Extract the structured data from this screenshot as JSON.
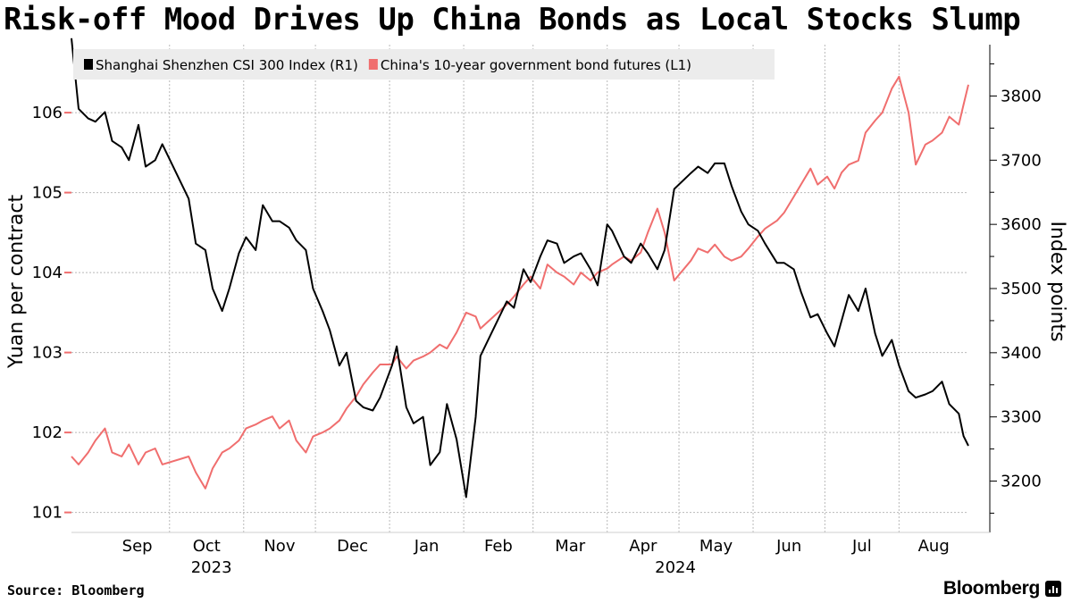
{
  "title": "Risk-off Mood Drives Up China Bonds as Local Stocks Slump",
  "footer": {
    "source": "Source: Bloomberg",
    "brand": "Bloomberg",
    "brand_icon": "bloomberg-terminal-icon"
  },
  "chart_data": {
    "type": "line",
    "title": "Risk-off Mood Drives Up China Bonds as Local Stocks Slump",
    "legend_position": "top-left",
    "x_start": "2023-08-21",
    "x_end": "2024-08-30",
    "x_months": [
      {
        "label": "Sep",
        "date": "2023-09-01"
      },
      {
        "label": "Oct",
        "date": "2023-10-01"
      },
      {
        "label": "Nov",
        "date": "2023-11-01"
      },
      {
        "label": "Dec",
        "date": "2023-12-01"
      },
      {
        "label": "Jan",
        "date": "2024-01-01"
      },
      {
        "label": "Feb",
        "date": "2024-02-01"
      },
      {
        "label": "Mar",
        "date": "2024-03-01"
      },
      {
        "label": "Apr",
        "date": "2024-04-01"
      },
      {
        "label": "May",
        "date": "2024-05-01"
      },
      {
        "label": "Jun",
        "date": "2024-06-01"
      },
      {
        "label": "Jul",
        "date": "2024-07-01"
      },
      {
        "label": "Aug",
        "date": "2024-08-01"
      }
    ],
    "x_years": [
      {
        "label": "2023",
        "date": "2023-10-20"
      },
      {
        "label": "2024",
        "date": "2024-05-01"
      }
    ],
    "y_left": {
      "label": "Yuan per contract",
      "ticks": [
        101,
        102,
        103,
        104,
        105,
        106
      ],
      "min": 100.75,
      "max": 106.85
    },
    "y_right": {
      "label": "Index points",
      "ticks": [
        3200,
        3300,
        3400,
        3500,
        3600,
        3700,
        3800
      ],
      "min": 3120,
      "max": 3880
    },
    "series": [
      {
        "name": "Shanghai Shenzhen CSI 300 Index (R1)",
        "axis": "right",
        "color": "#000000",
        "points": [
          [
            "2023-08-21",
            3890
          ],
          [
            "2023-08-24",
            3780
          ],
          [
            "2023-08-28",
            3765
          ],
          [
            "2023-08-31",
            3760
          ],
          [
            "2023-09-04",
            3775
          ],
          [
            "2023-09-07",
            3730
          ],
          [
            "2023-09-11",
            3720
          ],
          [
            "2023-09-14",
            3700
          ],
          [
            "2023-09-18",
            3755
          ],
          [
            "2023-09-21",
            3690
          ],
          [
            "2023-09-25",
            3700
          ],
          [
            "2023-09-28",
            3725
          ],
          [
            "2023-10-09",
            3640
          ],
          [
            "2023-10-12",
            3570
          ],
          [
            "2023-10-16",
            3560
          ],
          [
            "2023-10-19",
            3500
          ],
          [
            "2023-10-23",
            3465
          ],
          [
            "2023-10-26",
            3500
          ],
          [
            "2023-10-30",
            3555
          ],
          [
            "2023-11-02",
            3580
          ],
          [
            "2023-11-06",
            3560
          ],
          [
            "2023-11-09",
            3630
          ],
          [
            "2023-11-13",
            3605
          ],
          [
            "2023-11-16",
            3605
          ],
          [
            "2023-11-20",
            3595
          ],
          [
            "2023-11-23",
            3575
          ],
          [
            "2023-11-27",
            3560
          ],
          [
            "2023-11-30",
            3500
          ],
          [
            "2023-12-04",
            3465
          ],
          [
            "2023-12-07",
            3435
          ],
          [
            "2023-12-11",
            3380
          ],
          [
            "2023-12-14",
            3400
          ],
          [
            "2023-12-18",
            3325
          ],
          [
            "2023-12-21",
            3315
          ],
          [
            "2023-12-25",
            3310
          ],
          [
            "2023-12-28",
            3330
          ],
          [
            "2024-01-02",
            3380
          ],
          [
            "2024-01-04",
            3410
          ],
          [
            "2024-01-08",
            3315
          ],
          [
            "2024-01-11",
            3290
          ],
          [
            "2024-01-15",
            3300
          ],
          [
            "2024-01-18",
            3225
          ],
          [
            "2024-01-22",
            3245
          ],
          [
            "2024-01-25",
            3320
          ],
          [
            "2024-01-29",
            3265
          ],
          [
            "2024-02-02",
            3175
          ],
          [
            "2024-02-06",
            3300
          ],
          [
            "2024-02-08",
            3395
          ],
          [
            "2024-02-19",
            3480
          ],
          [
            "2024-02-22",
            3470
          ],
          [
            "2024-02-26",
            3530
          ],
          [
            "2024-02-29",
            3510
          ],
          [
            "2024-03-04",
            3550
          ],
          [
            "2024-03-07",
            3575
          ],
          [
            "2024-03-11",
            3570
          ],
          [
            "2024-03-14",
            3540
          ],
          [
            "2024-03-18",
            3550
          ],
          [
            "2024-03-21",
            3555
          ],
          [
            "2024-03-25",
            3530
          ],
          [
            "2024-03-28",
            3505
          ],
          [
            "2024-04-01",
            3600
          ],
          [
            "2024-04-03",
            3590
          ],
          [
            "2024-04-08",
            3550
          ],
          [
            "2024-04-11",
            3540
          ],
          [
            "2024-04-15",
            3570
          ],
          [
            "2024-04-18",
            3555
          ],
          [
            "2024-04-22",
            3530
          ],
          [
            "2024-04-25",
            3560
          ],
          [
            "2024-04-29",
            3655
          ],
          [
            "2024-05-06",
            3680
          ],
          [
            "2024-05-09",
            3690
          ],
          [
            "2024-05-13",
            3680
          ],
          [
            "2024-05-16",
            3695
          ],
          [
            "2024-05-20",
            3695
          ],
          [
            "2024-05-23",
            3660
          ],
          [
            "2024-05-27",
            3620
          ],
          [
            "2024-05-30",
            3600
          ],
          [
            "2024-06-03",
            3590
          ],
          [
            "2024-06-06",
            3570
          ],
          [
            "2024-06-11",
            3540
          ],
          [
            "2024-06-14",
            3540
          ],
          [
            "2024-06-18",
            3530
          ],
          [
            "2024-06-21",
            3495
          ],
          [
            "2024-06-25",
            3455
          ],
          [
            "2024-06-28",
            3460
          ],
          [
            "2024-07-02",
            3430
          ],
          [
            "2024-07-05",
            3410
          ],
          [
            "2024-07-08",
            3450
          ],
          [
            "2024-07-11",
            3490
          ],
          [
            "2024-07-15",
            3465
          ],
          [
            "2024-07-18",
            3500
          ],
          [
            "2024-07-22",
            3430
          ],
          [
            "2024-07-25",
            3395
          ],
          [
            "2024-07-29",
            3420
          ],
          [
            "2024-08-01",
            3380
          ],
          [
            "2024-08-05",
            3340
          ],
          [
            "2024-08-08",
            3330
          ],
          [
            "2024-08-12",
            3335
          ],
          [
            "2024-08-15",
            3340
          ],
          [
            "2024-08-19",
            3355
          ],
          [
            "2024-08-22",
            3320
          ],
          [
            "2024-08-26",
            3305
          ],
          [
            "2024-08-28",
            3270
          ],
          [
            "2024-08-30",
            3255
          ]
        ]
      },
      {
        "name": "China's 10-year government bond futures (L1)",
        "axis": "left",
        "color": "#f06e6e",
        "points": [
          [
            "2023-08-21",
            101.7
          ],
          [
            "2023-08-24",
            101.6
          ],
          [
            "2023-08-28",
            101.75
          ],
          [
            "2023-08-31",
            101.9
          ],
          [
            "2023-09-04",
            102.05
          ],
          [
            "2023-09-07",
            101.75
          ],
          [
            "2023-09-11",
            101.7
          ],
          [
            "2023-09-14",
            101.85
          ],
          [
            "2023-09-18",
            101.6
          ],
          [
            "2023-09-21",
            101.75
          ],
          [
            "2023-09-25",
            101.8
          ],
          [
            "2023-09-28",
            101.6
          ],
          [
            "2023-10-09",
            101.7
          ],
          [
            "2023-10-12",
            101.5
          ],
          [
            "2023-10-16",
            101.3
          ],
          [
            "2023-10-19",
            101.55
          ],
          [
            "2023-10-23",
            101.75
          ],
          [
            "2023-10-26",
            101.8
          ],
          [
            "2023-10-30",
            101.9
          ],
          [
            "2023-11-02",
            102.05
          ],
          [
            "2023-11-06",
            102.1
          ],
          [
            "2023-11-09",
            102.15
          ],
          [
            "2023-11-13",
            102.2
          ],
          [
            "2023-11-16",
            102.05
          ],
          [
            "2023-11-20",
            102.15
          ],
          [
            "2023-11-23",
            101.9
          ],
          [
            "2023-11-27",
            101.75
          ],
          [
            "2023-11-30",
            101.95
          ],
          [
            "2023-12-04",
            102.0
          ],
          [
            "2023-12-07",
            102.05
          ],
          [
            "2023-12-11",
            102.15
          ],
          [
            "2023-12-14",
            102.3
          ],
          [
            "2023-12-18",
            102.45
          ],
          [
            "2023-12-21",
            102.6
          ],
          [
            "2023-12-25",
            102.75
          ],
          [
            "2023-12-28",
            102.85
          ],
          [
            "2024-01-02",
            102.85
          ],
          [
            "2024-01-04",
            102.95
          ],
          [
            "2024-01-08",
            102.8
          ],
          [
            "2024-01-11",
            102.9
          ],
          [
            "2024-01-15",
            102.95
          ],
          [
            "2024-01-18",
            103.0
          ],
          [
            "2024-01-22",
            103.1
          ],
          [
            "2024-01-25",
            103.05
          ],
          [
            "2024-01-29",
            103.25
          ],
          [
            "2024-02-02",
            103.5
          ],
          [
            "2024-02-06",
            103.45
          ],
          [
            "2024-02-08",
            103.3
          ],
          [
            "2024-02-19",
            103.6
          ],
          [
            "2024-02-22",
            103.7
          ],
          [
            "2024-02-26",
            103.85
          ],
          [
            "2024-02-29",
            103.95
          ],
          [
            "2024-03-04",
            103.8
          ],
          [
            "2024-03-07",
            104.1
          ],
          [
            "2024-03-11",
            104.0
          ],
          [
            "2024-03-14",
            103.95
          ],
          [
            "2024-03-18",
            103.85
          ],
          [
            "2024-03-21",
            104.0
          ],
          [
            "2024-03-25",
            103.9
          ],
          [
            "2024-03-28",
            104.0
          ],
          [
            "2024-04-01",
            104.05
          ],
          [
            "2024-04-03",
            104.1
          ],
          [
            "2024-04-08",
            104.2
          ],
          [
            "2024-04-11",
            104.15
          ],
          [
            "2024-04-15",
            104.25
          ],
          [
            "2024-04-18",
            104.5
          ],
          [
            "2024-04-22",
            104.8
          ],
          [
            "2024-04-25",
            104.5
          ],
          [
            "2024-04-29",
            103.9
          ],
          [
            "2024-05-06",
            104.15
          ],
          [
            "2024-05-09",
            104.3
          ],
          [
            "2024-05-13",
            104.25
          ],
          [
            "2024-05-16",
            104.35
          ],
          [
            "2024-05-20",
            104.2
          ],
          [
            "2024-05-23",
            104.15
          ],
          [
            "2024-05-27",
            104.2
          ],
          [
            "2024-05-30",
            104.3
          ],
          [
            "2024-06-03",
            104.45
          ],
          [
            "2024-06-06",
            104.55
          ],
          [
            "2024-06-11",
            104.65
          ],
          [
            "2024-06-14",
            104.75
          ],
          [
            "2024-06-18",
            104.95
          ],
          [
            "2024-06-21",
            105.1
          ],
          [
            "2024-06-25",
            105.3
          ],
          [
            "2024-06-28",
            105.1
          ],
          [
            "2024-07-02",
            105.2
          ],
          [
            "2024-07-05",
            105.05
          ],
          [
            "2024-07-08",
            105.25
          ],
          [
            "2024-07-11",
            105.35
          ],
          [
            "2024-07-15",
            105.4
          ],
          [
            "2024-07-18",
            105.75
          ],
          [
            "2024-07-22",
            105.9
          ],
          [
            "2024-07-25",
            106.0
          ],
          [
            "2024-07-29",
            106.3
          ],
          [
            "2024-08-01",
            106.45
          ],
          [
            "2024-08-05",
            106.0
          ],
          [
            "2024-08-08",
            105.35
          ],
          [
            "2024-08-12",
            105.6
          ],
          [
            "2024-08-15",
            105.65
          ],
          [
            "2024-08-19",
            105.75
          ],
          [
            "2024-08-22",
            105.95
          ],
          [
            "2024-08-26",
            105.85
          ],
          [
            "2024-08-28",
            106.1
          ],
          [
            "2024-08-30",
            106.35
          ]
        ]
      }
    ]
  }
}
